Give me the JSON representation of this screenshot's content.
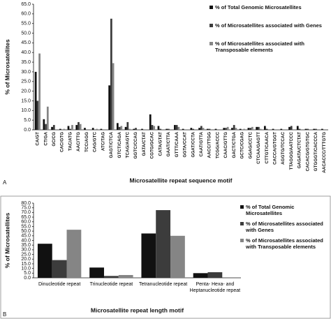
{
  "chart_data": [
    {
      "type": "bar",
      "label": "A",
      "x_label": "Microsatellite repeat sequence motif",
      "y_label": "% of Microsatellites",
      "categories": [
        "CA/GT",
        "CT/GA",
        "GC/CG",
        "CAC/GTG",
        "TAC/ATG",
        "AAC/TTG",
        "TCC/AGG",
        "CAG/GTC",
        "ATC/TAG",
        "GAGT/CTCA",
        "GTCT/CAGA",
        "TCAG/AGTC",
        "GGTC/CCAG",
        "GATA/CTAT",
        "CGTG/GCAC",
        "CATA/GTAT",
        "GAAT/CTTA",
        "GTTT/CAAA",
        "GGTA/CCAT",
        "GGAT/CCTA",
        "CAAT/GTTA",
        "AACC/TTGG",
        "TCGG/ACCC",
        "CAAC/GTTG",
        "GACT/CTGA",
        "GCTC/CGAG",
        "GGAG/CCTC",
        "CTCAA/GAGTT",
        "CTTGT/CAACA",
        "CACCA/GTGGT",
        "AGGTG/TCCAC",
        "TTAGGG/AATCCC",
        "GAGATA/CTCTAT",
        "CACACG/GTGTGC",
        "GTGGGT/CACCCA",
        "AACACCC/TTTGTG"
      ],
      "series": [
        {
          "name": "% of Total Genomic Microsatellites",
          "color": "#111111",
          "values": [
            30,
            5.5,
            1.5,
            0.5,
            2,
            2.5,
            1,
            1,
            0.5,
            23,
            3.5,
            1.5,
            0.5,
            0.5,
            8,
            2,
            0.5,
            2.5,
            0.5,
            1,
            1,
            0.5,
            0.5,
            1,
            1,
            0.5,
            1,
            1.5,
            2,
            0.5,
            0.5,
            1.5,
            2,
            0.5,
            0.5,
            0.5
          ]
        },
        {
          "name": "% of Microsatellites associated with Genes",
          "color": "#3c3c3c",
          "values": [
            15,
            3,
            2.5,
            0,
            0.5,
            4,
            0,
            0,
            0,
            57.5,
            1.5,
            4,
            1,
            0,
            2.5,
            0.5,
            0.5,
            2.5,
            0,
            0.5,
            2,
            0.5,
            0,
            1,
            2.5,
            0,
            1,
            1.5,
            0.5,
            0,
            0,
            2,
            0.5,
            0.5,
            0.5,
            0
          ]
        },
        {
          "name": "% of Microsatellites associated with Transposable elements",
          "color": "#858585",
          "values": [
            39.5,
            12,
            0,
            0.5,
            2.5,
            3,
            0,
            0.5,
            0,
            34.5,
            2,
            0.5,
            0,
            0,
            2,
            0,
            0,
            1.5,
            0,
            0,
            1,
            0,
            0,
            1.5,
            1,
            0.5,
            1.5,
            0.5,
            0,
            0,
            0,
            0,
            0,
            0,
            0,
            0
          ]
        }
      ],
      "ylim": [
        0,
        65
      ],
      "yticks": [
        {
          "value": 0,
          "label": "0.0"
        },
        {
          "value": 5,
          "label": "5.0"
        },
        {
          "value": 10,
          "label": "10.0"
        },
        {
          "value": 15,
          "label": "15.0"
        },
        {
          "value": 20,
          "label": "20.0"
        },
        {
          "value": 25,
          "label": "25.0"
        },
        {
          "value": 30,
          "label": "30.0"
        },
        {
          "value": 35,
          "label": "35.0"
        },
        {
          "value": 40,
          "label": "40.0"
        },
        {
          "value": 45,
          "label": "45.0"
        },
        {
          "value": 50,
          "label": "50.0"
        },
        {
          "value": 55,
          "label": "55.0"
        },
        {
          "value": 60,
          "label": "60.0"
        },
        {
          "value": 65,
          "label": "65.0"
        }
      ],
      "grid": false,
      "legend": "top-right"
    },
    {
      "type": "bar",
      "label": "B",
      "x_label": "Microsatellite repeat length motif",
      "y_label": "% of Microsatellites",
      "categories": [
        "Dinucleotide repeat",
        "Trinucleotide repeat",
        "Tetranucleotide repeat",
        "Penta- Hexa- and Heptanucleotide repeat"
      ],
      "series": [
        {
          "name": "% of Total Genomic Microsatellites",
          "color": "#111111",
          "values": [
            36.5,
            11,
            47.5,
            5
          ]
        },
        {
          "name": "% of Microsatellites associated with Genes",
          "color": "#3c3c3c",
          "values": [
            19,
            2,
            72.5,
            6
          ]
        },
        {
          "name": "% of Microsatellites associated with Transposable elements",
          "color": "#858585",
          "values": [
            51.5,
            3,
            45,
            0
          ]
        }
      ],
      "ylim": [
        0,
        80
      ],
      "yticks": [
        {
          "value": 0,
          "label": "0.0"
        },
        {
          "value": 5,
          "label": "5.0"
        },
        {
          "value": 10,
          "label": "10.0"
        },
        {
          "value": 15,
          "label": "15.0"
        },
        {
          "value": 20,
          "label": "20.0"
        },
        {
          "value": 25,
          "label": "25.0"
        },
        {
          "value": 30,
          "label": "30.0"
        },
        {
          "value": 35,
          "label": "35.0"
        },
        {
          "value": 40,
          "label": "40.0"
        },
        {
          "value": 45,
          "label": "45.0"
        },
        {
          "value": 50,
          "label": "50.0"
        },
        {
          "value": 55,
          "label": "55.0"
        },
        {
          "value": 60,
          "label": "60.0"
        },
        {
          "value": 65,
          "label": "65.0"
        },
        {
          "value": 70,
          "label": "70.0"
        },
        {
          "value": 75,
          "label": "75.0"
        },
        {
          "value": 80,
          "label": "80.0"
        }
      ],
      "grid": false,
      "legend": "right"
    }
  ]
}
